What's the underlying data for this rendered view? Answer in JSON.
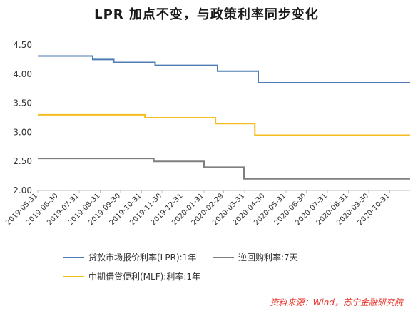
{
  "title": "LPR 加点不变，与政策利率同步变化",
  "source": "资料来源：Wind，苏宁金融研究院",
  "colors": {
    "lpr": "#4f7cb5",
    "reverse_repo": "#7f7f7f",
    "mlf": "#f5bd1f"
  },
  "chart_data": {
    "type": "line",
    "title": "LPR 加点不变，与政策利率同步变化",
    "xlabel": "",
    "ylabel": "",
    "ylim": [
      2.0,
      4.5
    ],
    "yticks": [
      "4.50",
      "4.00",
      "3.50",
      "3.00",
      "2.50",
      "2.00"
    ],
    "xlim": [
      "2019-05-31",
      "2020-11-30"
    ],
    "xticks": [
      "2019-05-31",
      "2019-06-30",
      "2019-07-31",
      "2019-08-31",
      "2019-09-30",
      "2019-10-31",
      "2019-11-30",
      "2019-12-31",
      "2020-01-31",
      "2020-02-29",
      "2020-03-31",
      "2020-04-30",
      "2020-05-31",
      "2020-06-30",
      "2020-07-31",
      "2020-08-31",
      "2020-09-30",
      "2020-10-31"
    ],
    "grid": false,
    "legend_position": "bottom",
    "series": [
      {
        "name": "贷款市场报价利率(LPR):1年",
        "color": "#4f7cb5",
        "step": true,
        "points": [
          [
            "2019-05-31",
            4.31
          ],
          [
            "2019-08-20",
            4.25
          ],
          [
            "2019-09-20",
            4.2
          ],
          [
            "2019-11-20",
            4.15
          ],
          [
            "2020-02-20",
            4.05
          ],
          [
            "2020-04-20",
            3.85
          ],
          [
            "2020-11-30",
            3.85
          ]
        ]
      },
      {
        "name": "逆回购利率:7天",
        "color": "#7f7f7f",
        "step": true,
        "points": [
          [
            "2019-05-31",
            2.55
          ],
          [
            "2019-11-18",
            2.5
          ],
          [
            "2020-01-31",
            2.4
          ],
          [
            "2020-03-30",
            2.2
          ],
          [
            "2020-11-30",
            2.2
          ]
        ]
      },
      {
        "name": "中期借贷便利(MLF):利率:1年",
        "color": "#f5bd1f",
        "step": true,
        "points": [
          [
            "2019-05-31",
            3.3
          ],
          [
            "2019-11-05",
            3.25
          ],
          [
            "2020-02-17",
            3.15
          ],
          [
            "2020-04-15",
            2.95
          ],
          [
            "2020-11-30",
            2.95
          ]
        ]
      }
    ]
  }
}
